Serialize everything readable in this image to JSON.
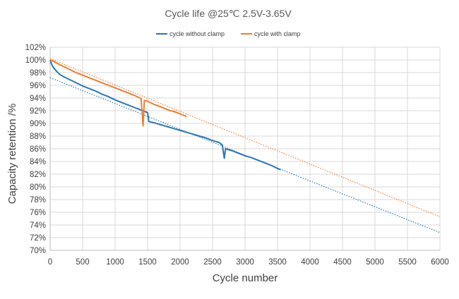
{
  "chart_data": {
    "type": "line",
    "title": "Cycle life @25℃  2.5V-3.65V",
    "xlabel": "Cycle number",
    "ylabel": "Capacity retention /%",
    "xlim": [
      0,
      6000
    ],
    "ylim": [
      70,
      102
    ],
    "x_ticks": [
      "0",
      "500",
      "1000",
      "1500",
      "2000",
      "2500",
      "3000",
      "3500",
      "4000",
      "4500",
      "5000",
      "5500",
      "6000"
    ],
    "y_ticks": [
      "70%",
      "72%",
      "74%",
      "76%",
      "78%",
      "80%",
      "82%",
      "84%",
      "86%",
      "88%",
      "90%",
      "92%",
      "94%",
      "96%",
      "98%",
      "100%",
      "102%"
    ],
    "grid": true,
    "legend_position": "top-center",
    "series": [
      {
        "name": "cycle without clamp",
        "color": "#2E75B6",
        "points": [
          [
            0,
            100
          ],
          [
            20,
            99.4
          ],
          [
            50,
            98.8
          ],
          [
            100,
            98.2
          ],
          [
            150,
            97.7
          ],
          [
            200,
            97.4
          ],
          [
            300,
            96.9
          ],
          [
            400,
            96.4
          ],
          [
            500,
            95.9
          ],
          [
            600,
            95.5
          ],
          [
            700,
            95.1
          ],
          [
            800,
            94.6
          ],
          [
            900,
            94.2
          ],
          [
            1000,
            93.7
          ],
          [
            1100,
            93.3
          ],
          [
            1200,
            92.9
          ],
          [
            1300,
            92.5
          ],
          [
            1400,
            92.1
          ],
          [
            1500,
            91.7
          ],
          [
            1520,
            90.3
          ],
          [
            1600,
            90.1
          ],
          [
            1700,
            89.8
          ],
          [
            1800,
            89.5
          ],
          [
            1900,
            89.2
          ],
          [
            2000,
            88.9
          ],
          [
            2100,
            88.6
          ],
          [
            2200,
            88.3
          ],
          [
            2300,
            88.0
          ],
          [
            2400,
            87.7
          ],
          [
            2500,
            87.3
          ],
          [
            2600,
            87.0
          ],
          [
            2650,
            86.6
          ],
          [
            2680,
            84.5
          ],
          [
            2700,
            86.0
          ],
          [
            2800,
            85.7
          ],
          [
            2900,
            85.3
          ],
          [
            3000,
            84.9
          ],
          [
            3100,
            84.6
          ],
          [
            3200,
            84.2
          ],
          [
            3300,
            83.8
          ],
          [
            3400,
            83.4
          ],
          [
            3500,
            82.9
          ],
          [
            3550,
            82.7
          ]
        ],
        "trend": [
          [
            0,
            97.2
          ],
          [
            6000,
            72.8
          ]
        ]
      },
      {
        "name": "cycle with clamp",
        "color": "#ED7D31",
        "points": [
          [
            0,
            100
          ],
          [
            50,
            99.8
          ],
          [
            100,
            99.5
          ],
          [
            200,
            99.0
          ],
          [
            300,
            98.5
          ],
          [
            400,
            98.0
          ],
          [
            500,
            97.6
          ],
          [
            600,
            97.2
          ],
          [
            700,
            96.8
          ],
          [
            800,
            96.4
          ],
          [
            900,
            96.0
          ],
          [
            1000,
            95.6
          ],
          [
            1100,
            95.2
          ],
          [
            1200,
            94.8
          ],
          [
            1300,
            94.4
          ],
          [
            1400,
            93.9
          ],
          [
            1430,
            89.6
          ],
          [
            1450,
            93.6
          ],
          [
            1500,
            93.5
          ],
          [
            1600,
            93.0
          ],
          [
            1700,
            92.6
          ],
          [
            1800,
            92.2
          ],
          [
            1850,
            92.0
          ],
          [
            1900,
            91.9
          ],
          [
            2000,
            91.5
          ],
          [
            2100,
            91.1
          ]
        ],
        "trend": [
          [
            0,
            100.2
          ],
          [
            6000,
            75.3
          ]
        ]
      }
    ]
  }
}
